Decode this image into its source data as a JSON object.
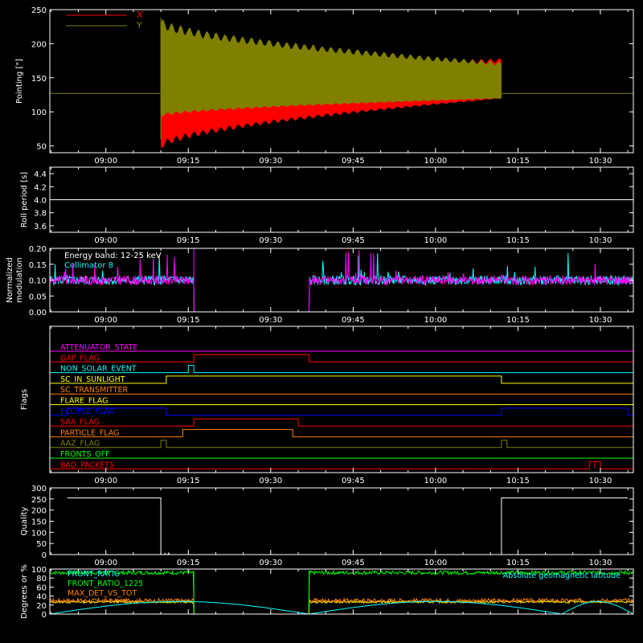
{
  "chart_data": [
    {
      "type": "area",
      "ylabel": "Pointing [\"]",
      "ylim": [
        40,
        250
      ],
      "yticks": [
        50,
        100,
        150,
        200,
        250
      ],
      "x_ticks": [
        "09:00",
        "09:15",
        "09:30",
        "09:45",
        "10:00",
        "10:15",
        "10:30"
      ],
      "legend": [
        "X",
        "Y"
      ],
      "series": [
        {
          "name": "X",
          "color": "#ff0000",
          "baseline": 127,
          "active_from": "09:10",
          "active_to": "10:12",
          "envelope_start": [
            50,
            145
          ],
          "envelope_end": [
            120,
            175
          ]
        },
        {
          "name": "Y",
          "color": "#808000",
          "baseline": 127,
          "active_from": "09:10",
          "active_to": "10:12",
          "envelope_start": [
            95,
            230
          ],
          "envelope_end": [
            120,
            170
          ]
        }
      ]
    },
    {
      "type": "line",
      "ylabel": "Roll period [s]",
      "ylim": [
        3.5,
        4.5
      ],
      "yticks": [
        3.6,
        3.8,
        4.0,
        4.2,
        4.4
      ],
      "x_ticks": [
        "09:00",
        "09:15",
        "09:30",
        "09:45",
        "10:00",
        "10:15",
        "10:30"
      ],
      "series": [
        {
          "name": "",
          "color": "#ffffff",
          "value": 4.0
        }
      ]
    },
    {
      "type": "line",
      "ylabel": "Normalized modulation",
      "ylim": [
        0.0,
        0.2
      ],
      "yticks": [
        0.0,
        0.05,
        0.1,
        0.15,
        0.2
      ],
      "x_ticks": [
        "09:00",
        "09:15",
        "09:30",
        "09:45",
        "10:00",
        "10:15",
        "10:30"
      ],
      "legend": [
        "Energy band: 12-25 keV",
        "Collimator 8"
      ],
      "series": [
        {
          "name": "Collimator 8",
          "color": "#00ffff",
          "mean": 0.1
        },
        {
          "name": "",
          "color": "#ff00ff",
          "mean": 0.1,
          "gap": [
            "09:16",
            "09:37"
          ]
        }
      ]
    },
    {
      "type": "line",
      "ylabel": "Flags",
      "x_ticks": [
        "09:00",
        "09:15",
        "09:30",
        "09:45",
        "10:00",
        "10:15",
        "10:30"
      ],
      "flags": [
        {
          "name": "ATTENUATOR_STATE",
          "color": "#ff00ff",
          "on": []
        },
        {
          "name": "GAP_FLAG",
          "color": "#ff0000",
          "on": [
            [
              "09:16",
              "09:37"
            ]
          ]
        },
        {
          "name": "NON_SOLAR_EVENT",
          "color": "#00ffff",
          "on": [
            [
              "09:15",
              "09:16"
            ]
          ]
        },
        {
          "name": "SC_IN_SUNLIGHT",
          "color": "#ffff00",
          "on": [
            [
              "09:11",
              "10:12"
            ]
          ]
        },
        {
          "name": "SC_TRANSMITTER",
          "color": "#ff8000",
          "on": []
        },
        {
          "name": "FLARE_FLAG",
          "color": "#ffff00",
          "on": []
        },
        {
          "name": "ECLIPSE_FLAG",
          "color": "#0000ff",
          "on": [
            [
              "08:53",
              "09:11"
            ],
            [
              "10:12",
              "10:35"
            ]
          ]
        },
        {
          "name": "SAA_FLAG",
          "color": "#ff0000",
          "on": [
            [
              "09:16",
              "09:35"
            ]
          ]
        },
        {
          "name": "PARTICLE_FLAG",
          "color": "#ff8000",
          "on": [
            [
              "09:14",
              "09:34"
            ]
          ]
        },
        {
          "name": "AAZ_FLAG",
          "color": "#808000",
          "on": [
            [
              "09:10",
              "09:11"
            ],
            [
              "10:12",
              "10:13"
            ]
          ]
        },
        {
          "name": "FRONTS_OFF",
          "color": "#00ff00",
          "on": []
        },
        {
          "name": "BAD_PACKETS",
          "color": "#ff0000",
          "on": [
            [
              "10:28",
              "10:29"
            ],
            [
              "10:29",
              "10:30"
            ]
          ]
        }
      ]
    },
    {
      "type": "line",
      "ylabel": "Quality",
      "ylim": [
        0,
        300
      ],
      "yticks": [
        0,
        50,
        100,
        150,
        200,
        250,
        300
      ],
      "x_ticks": [
        "09:00",
        "09:15",
        "09:30",
        "09:45",
        "10:00",
        "10:15",
        "10:30"
      ],
      "series": [
        {
          "name": "",
          "color": "#ffffff",
          "high": 255,
          "low": 0,
          "segments": [
            [
              "08:53",
              "09:10",
              "high"
            ],
            [
              "09:10",
              "10:12",
              "low"
            ],
            [
              "10:12",
              "10:35",
              "high"
            ]
          ]
        }
      ]
    },
    {
      "type": "line",
      "ylabel": "Degrees or %",
      "ylim": [
        0,
        100
      ],
      "yticks": [
        0,
        20,
        40,
        60,
        80,
        100
      ],
      "x_ticks": [],
      "legend": [
        "FRONT_RATIO",
        "FRONT_RATIO_1225",
        "MAX_DET_VS_TOT"
      ],
      "annotation": "Absolute geomagnetic latitude",
      "series": [
        {
          "name": "FRONT_RATIO",
          "color": "#00ff00",
          "mean": 92
        },
        {
          "name": "FRONT_RATIO_1225",
          "color": "#ffff00",
          "mean": 27
        },
        {
          "name": "MAX_DET_VS_TOT",
          "color": "#ff8000",
          "mean": 30
        },
        {
          "name": "Absolute geomagnetic latitude",
          "color": "#00ffff",
          "peak": 28
        }
      ]
    }
  ]
}
